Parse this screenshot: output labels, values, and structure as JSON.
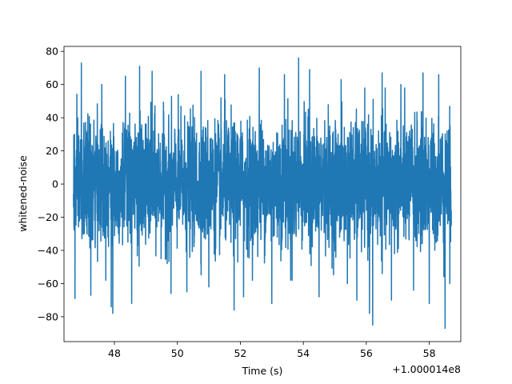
{
  "chart_data": {
    "type": "line",
    "title": "",
    "xlabel": "Time (s)",
    "ylabel": "whitened-noise",
    "x_offset_label": "+1.000014e8",
    "xlim": [
      46.4,
      59.0
    ],
    "ylim": [
      -95,
      83
    ],
    "x_ticks": [
      48,
      50,
      52,
      54,
      56,
      58
    ],
    "x_tick_labels": [
      "48",
      "50",
      "52",
      "54",
      "56",
      "58"
    ],
    "y_ticks": [
      -80,
      -60,
      -40,
      -20,
      0,
      20,
      40,
      60,
      80
    ],
    "y_tick_labels": [
      "−80",
      "−60",
      "−40",
      "−20",
      "0",
      "20",
      "40",
      "60",
      "80"
    ],
    "grid": false,
    "legend": "none",
    "series": [
      {
        "color": "#1f77b4",
        "x_start": 46.7,
        "x_end": 58.7,
        "typical_envelope": [
          -40,
          40
        ],
        "min": -87,
        "max": 76,
        "extremes": [
          {
            "x": 46.75,
            "y": -69
          },
          {
            "x": 46.95,
            "y": 73
          },
          {
            "x": 47.25,
            "y": -67
          },
          {
            "x": 47.6,
            "y": 60
          },
          {
            "x": 47.9,
            "y": -74
          },
          {
            "x": 47.95,
            "y": -78
          },
          {
            "x": 48.35,
            "y": 65
          },
          {
            "x": 48.55,
            "y": -72
          },
          {
            "x": 48.8,
            "y": 71
          },
          {
            "x": 49.2,
            "y": 68
          },
          {
            "x": 49.8,
            "y": -66
          },
          {
            "x": 50.3,
            "y": -65
          },
          {
            "x": 50.75,
            "y": 68
          },
          {
            "x": 51.0,
            "y": -62
          },
          {
            "x": 51.5,
            "y": 66
          },
          {
            "x": 51.8,
            "y": -76
          },
          {
            "x": 52.1,
            "y": -68
          },
          {
            "x": 52.6,
            "y": 70
          },
          {
            "x": 53.0,
            "y": -72
          },
          {
            "x": 53.4,
            "y": 66
          },
          {
            "x": 53.6,
            "y": -58
          },
          {
            "x": 53.85,
            "y": 76
          },
          {
            "x": 54.2,
            "y": 69
          },
          {
            "x": 54.5,
            "y": -68
          },
          {
            "x": 55.2,
            "y": 63
          },
          {
            "x": 55.4,
            "y": -60
          },
          {
            "x": 55.7,
            "y": -70
          },
          {
            "x": 56.1,
            "y": -78
          },
          {
            "x": 56.2,
            "y": -85
          },
          {
            "x": 56.5,
            "y": 67
          },
          {
            "x": 56.8,
            "y": -70
          },
          {
            "x": 57.1,
            "y": 60
          },
          {
            "x": 57.5,
            "y": -64
          },
          {
            "x": 57.8,
            "y": 67
          },
          {
            "x": 58.0,
            "y": -72
          },
          {
            "x": 58.3,
            "y": 66
          },
          {
            "x": 58.5,
            "y": -87
          },
          {
            "x": 58.65,
            "y": -60
          }
        ]
      }
    ]
  }
}
